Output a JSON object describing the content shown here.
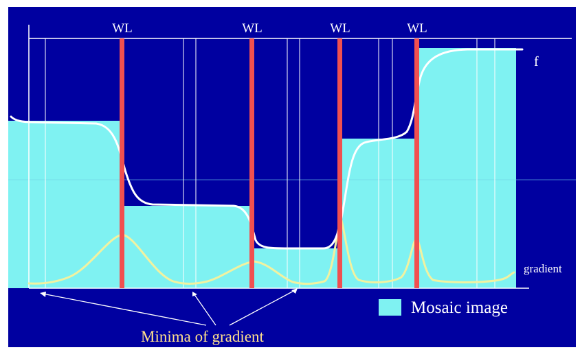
{
  "watershed_label": "WL",
  "watershed_lines": [
    {
      "name": "watershed-line-1",
      "label": "WL"
    },
    {
      "name": "watershed-line-2",
      "label": "WL"
    },
    {
      "name": "watershed-line-3",
      "label": "WL"
    },
    {
      "name": "watershed-line-4",
      "label": "WL"
    }
  ],
  "curve_labels": {
    "function": "f",
    "gradient": "gradient"
  },
  "legend": {
    "label": "Mosaic image"
  },
  "annotation": {
    "minima": "Minima of gradient"
  },
  "colors": {
    "background": "#0000a0",
    "mosaic": "#7ff2f2",
    "watershed": "#f05050",
    "function_curve": "#ffffff",
    "gradient_curve": "#f2f2a0",
    "guide_lines": "#ffffff",
    "frame": "#ffffff"
  }
}
